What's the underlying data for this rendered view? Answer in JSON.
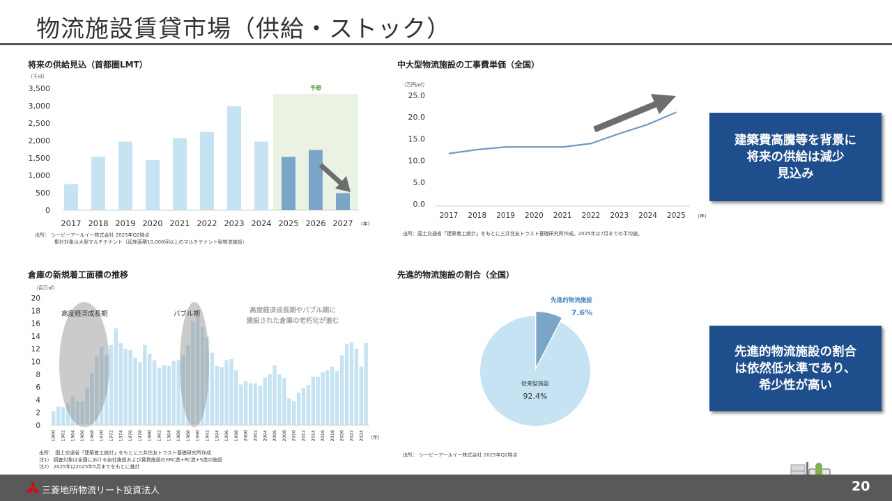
{
  "page_title": "物流施設賃貸市場（供給・ストック）",
  "footer": {
    "company": "三菱地所物流リート投資法人",
    "page_number": "20"
  },
  "callouts": [
    {
      "text": "建築費高騰等を背景に\n将来の供給は減少\n見込み"
    },
    {
      "text": "先進的物流施設の割合\nは依然低水準であり、\n希少性が高い"
    }
  ],
  "colors": {
    "navy": "#1f4e8c",
    "light_blue": "#c5e3f3",
    "dark_blue": "#7aa5c7",
    "line_blue": "#6e99c4",
    "forecast_bg": "#e9f2e3",
    "forecast_text": "#5a9a3a",
    "arrow_gray": "#6d6d6d",
    "footer_gray": "#595959"
  },
  "chart_data": [
    {
      "type": "bar",
      "title": "将来の供給見込（首都圏LMT）",
      "unit_label": "（千㎡）",
      "categories": [
        "2017",
        "2018",
        "2019",
        "2020",
        "2021",
        "2022",
        "2023",
        "2024",
        "2025",
        "2026",
        "2027"
      ],
      "year_suffix": "(年)",
      "values": [
        750,
        1530,
        1970,
        1440,
        2070,
        2250,
        2990,
        1970,
        1530,
        1730,
        490
      ],
      "forecast_from_index": 8,
      "forecast_label": "予想",
      "ylim": [
        0,
        3500
      ],
      "yticks": [
        "3,500",
        "3,000",
        "2,500",
        "2,000",
        "1,500",
        "1,000",
        "500",
        "0"
      ],
      "source": [
        "出所： シービーアールイー株式会社 2025年Q2時点",
        "集計対象は大型マルチテナント（延床面積10,000坪以上のマルチテナント型物流施設）"
      ]
    },
    {
      "type": "line",
      "title": "中大型物流施設の工事費単価（全国）",
      "unit_label": "（万円/㎡）",
      "x": [
        "2017",
        "2018",
        "2019",
        "2020",
        "2021",
        "2022",
        "2023",
        "2024",
        "2025"
      ],
      "year_suffix": "（年）",
      "values": [
        11.6,
        12.5,
        13.1,
        13.1,
        13.1,
        13.9,
        16.2,
        18.3,
        21.1
      ],
      "ylim": [
        0,
        25
      ],
      "yticks": [
        "25.0",
        "20.0",
        "15.0",
        "10.0",
        "5.0",
        "0.0"
      ],
      "source": [
        "出所：国土交通省「建築着工統計」をもとに三井住友トラスト基礎研究所作成。2025年は7月までの平均値。"
      ]
    },
    {
      "type": "bar",
      "title": "倉庫の新規着工面積の推移",
      "unit_label": "（百万㎡）",
      "years": [
        "1960",
        "1961",
        "1962",
        "1963",
        "1964",
        "1965",
        "1966",
        "1967",
        "1968",
        "1969",
        "1970",
        "1971",
        "1972",
        "1973",
        "1974",
        "1975",
        "1976",
        "1977",
        "1978",
        "1979",
        "1980",
        "1981",
        "1982",
        "1983",
        "1984",
        "1985",
        "1986",
        "1987",
        "1988",
        "1989",
        "1990",
        "1991",
        "1992",
        "1993",
        "1994",
        "1995",
        "1996",
        "1997",
        "1998",
        "1999",
        "2000",
        "2001",
        "2002",
        "2003",
        "2004",
        "2005",
        "2006",
        "2007",
        "2008",
        "2009",
        "2010",
        "2011",
        "2012",
        "2013",
        "2014",
        "2015",
        "2016",
        "2017",
        "2018",
        "2019",
        "2020",
        "2021",
        "2022",
        "2023",
        "2024",
        "2025"
      ],
      "tick_labels": [
        "1960",
        "1962",
        "1964",
        "1966",
        "1968",
        "1970",
        "1972",
        "1974",
        "1976",
        "1978",
        "1980",
        "1982",
        "1984",
        "1986",
        "1988",
        "1990",
        "1992",
        "1994",
        "1996",
        "1998",
        "2000",
        "2002",
        "2004",
        "2006",
        "2008",
        "2010",
        "2012",
        "2014",
        "2016",
        "2018",
        "2020",
        "2022",
        "2024"
      ],
      "year_suffix": "（年）",
      "values": [
        2.2,
        2.9,
        2.8,
        3.4,
        4.5,
        3.8,
        3.7,
        5.9,
        8.2,
        10.8,
        12.3,
        11.0,
        12.6,
        15.2,
        12.9,
        12.0,
        11.8,
        10.6,
        9.9,
        12.6,
        11.2,
        10.2,
        9.0,
        9.4,
        9.3,
        10.1,
        10.2,
        11.0,
        12.6,
        16.3,
        17.0,
        15.4,
        13.9,
        11.4,
        9.3,
        9.1,
        10.2,
        10.4,
        8.6,
        6.4,
        6.9,
        6.6,
        6.5,
        6.2,
        7.5,
        8.0,
        9.4,
        8.0,
        7.4,
        4.2,
        3.8,
        5.1,
        5.8,
        6.3,
        7.6,
        7.6,
        8.3,
        8.6,
        9.2,
        8.5,
        11.0,
        12.8,
        13.0,
        12.0,
        9.2,
        12.9
      ],
      "ylim": [
        0,
        20
      ],
      "yticks": [
        "20",
        "18",
        "16",
        "14",
        "12",
        "10",
        "8",
        "6",
        "4",
        "2",
        "0"
      ],
      "annotations": [
        "高度経済成長期",
        "バブル期",
        "高度経済成長期やバブル期に\n建設された倉庫の老朽化が進む"
      ],
      "source": [
        "出所： 国土交通省「建築着工統計」をもとに三井住友トラスト基礎研究所作成",
        "注1）  調査対象は全国における自社施設および賃貸施設のSRC造+RC造+S造の施設",
        "注2）  2025年は2025年5月までをもとに推計"
      ]
    },
    {
      "type": "pie",
      "title": "先進的物流施設の割合（全国）",
      "slices": [
        {
          "label": "先進的物流施設",
          "value": 7.6,
          "display": "7.6%"
        },
        {
          "label": "従来型施設",
          "value": 92.4,
          "display": "92.4%"
        }
      ],
      "source": [
        "出所： シービーアールイー株式会社 2025年Q2時点"
      ]
    }
  ]
}
